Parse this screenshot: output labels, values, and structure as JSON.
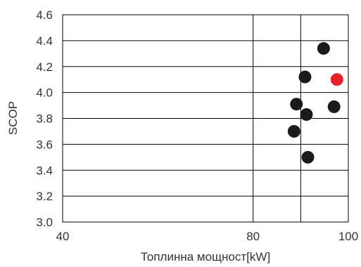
{
  "chart_data": {
    "type": "scatter",
    "xlabel": "Топлинна мощност[kW]",
    "ylabel": "SCOP",
    "xlim": [
      40,
      100
    ],
    "ylim": [
      3.0,
      4.6
    ],
    "x_ticks": [
      "40",
      "80",
      "100"
    ],
    "x_tick_values": [
      40,
      80,
      100
    ],
    "x_grid_values": [
      40,
      80,
      90,
      100
    ],
    "y_ticks": [
      "3.0",
      "3.2",
      "3.4",
      "3.6",
      "3.8",
      "4.0",
      "4.2",
      "4.4",
      "4.6"
    ],
    "y_tick_values": [
      3.0,
      3.2,
      3.4,
      3.6,
      3.8,
      4.0,
      4.2,
      4.4,
      4.6
    ],
    "grid": true,
    "series": [
      {
        "color": "#1a1a1a",
        "points": [
          {
            "x": 88.6,
            "y": 3.7
          },
          {
            "x": 89.1,
            "y": 3.91
          },
          {
            "x": 90.9,
            "y": 4.12
          },
          {
            "x": 91.2,
            "y": 3.83
          },
          {
            "x": 91.5,
            "y": 3.5
          },
          {
            "x": 94.8,
            "y": 4.34
          },
          {
            "x": 97.0,
            "y": 3.89
          }
        ]
      },
      {
        "color": "#e8202a",
        "points": [
          {
            "x": 97.6,
            "y": 4.1
          }
        ]
      }
    ]
  }
}
